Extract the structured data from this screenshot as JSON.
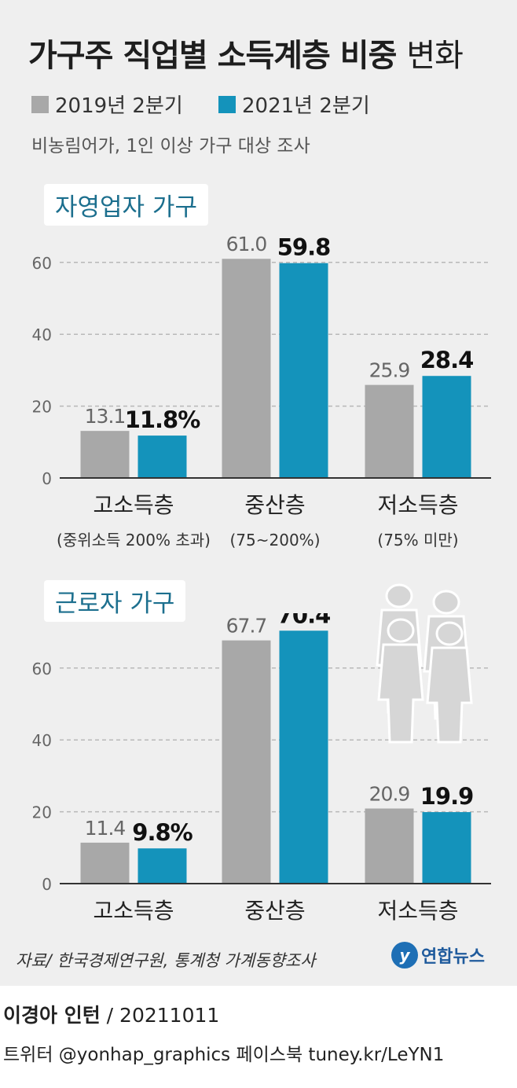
{
  "header": {
    "title_bold": "가구주 직업별 소득계층 비중",
    "title_light": "변화",
    "subtitle": "비농림어가, 1인 이상 가구 대상 조사"
  },
  "legend": [
    {
      "label": "2019년 2분기",
      "color": "#a8a8a8"
    },
    {
      "label": "2021년 2분기",
      "color": "#1493bb"
    }
  ],
  "chart_data": [
    {
      "type": "bar",
      "title": "자영업자 가구",
      "categories": [
        "고소득층",
        "중산층",
        "저소득층"
      ],
      "category_notes": [
        "(중위소득 200% 초과)",
        "(75~200%)",
        "(75% 미만)"
      ],
      "series": [
        {
          "name": "2019년 2분기",
          "values": [
            13.1,
            61.0,
            25.9
          ]
        },
        {
          "name": "2021년 2분기",
          "values": [
            11.8,
            59.8,
            28.4
          ]
        }
      ],
      "value_labels": [
        [
          "13.1",
          "61.0",
          "25.9"
        ],
        [
          "11.8%",
          "59.8",
          "28.4"
        ]
      ],
      "yticks": [
        "0",
        "20",
        "40",
        "60"
      ],
      "ylim": [
        0,
        65
      ],
      "grid": true
    },
    {
      "type": "bar",
      "title": "근로자 가구",
      "categories": [
        "고소득층",
        "중산층",
        "저소득층"
      ],
      "series": [
        {
          "name": "2019년 2분기",
          "values": [
            11.4,
            67.7,
            20.9
          ]
        },
        {
          "name": "2021년 2분기",
          "values": [
            9.8,
            70.4,
            19.9
          ]
        }
      ],
      "value_labels": [
        [
          "11.4",
          "67.7",
          "20.9"
        ],
        [
          "9.8%",
          "70.4",
          "19.9"
        ]
      ],
      "yticks": [
        "0",
        "20",
        "40",
        "60"
      ],
      "ylim": [
        0,
        72
      ],
      "grid": true
    }
  ],
  "footer": {
    "source": "자료/ 한국경제연구원, 통계청 가계동향조사",
    "logo_text": "연합뉴스",
    "credit_name": "이경아 인턴",
    "credit_date": "/ 20211011",
    "social": "트위터 @yonhap_graphics  페이스북 tuney.kr/LeYN1"
  }
}
